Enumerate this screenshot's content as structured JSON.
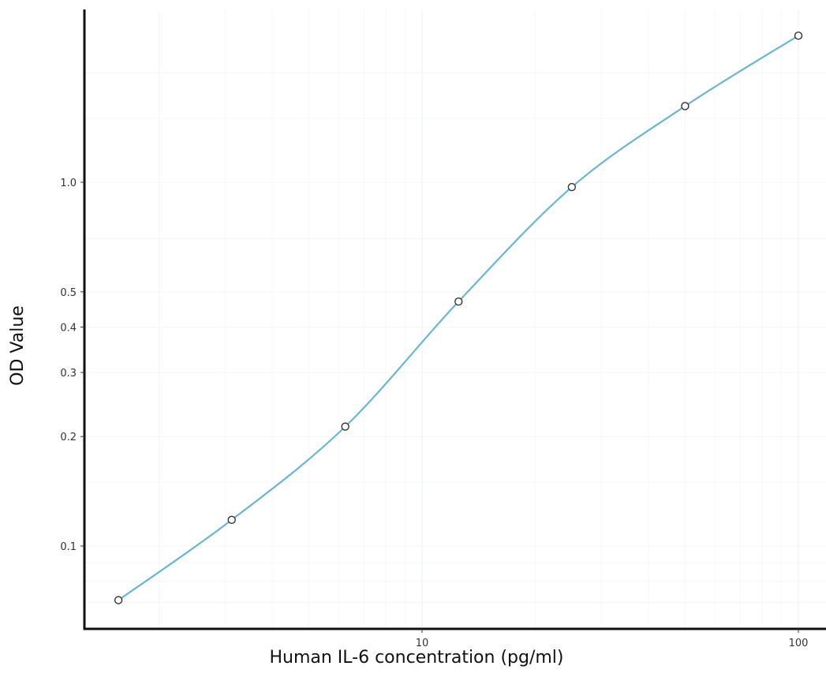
{
  "chart_data": {
    "type": "scatter",
    "title": "",
    "xlabel": "Human IL-6 concentration (pg/ml)",
    "ylabel": "OD Value",
    "x_scale": "log",
    "y_scale": "log",
    "xlim": [
      1.0,
      100
    ],
    "ylim": [
      0.05,
      2.2
    ],
    "x_ticks": [
      {
        "value": 10,
        "label": "10"
      },
      {
        "value": 100,
        "label": "100"
      }
    ],
    "y_ticks": [
      {
        "value": 0.1,
        "label": "0.1"
      },
      {
        "value": 0.2,
        "label": "0.2"
      },
      {
        "value": 0.3,
        "label": "0.3"
      },
      {
        "value": 0.4,
        "label": "0.4"
      },
      {
        "value": 0.5,
        "label": "0.5"
      },
      {
        "value": 1.0,
        "label": "1.0"
      }
    ],
    "grid": true,
    "series": [
      {
        "points": [
          {
            "x": 1.56,
            "y": 0.071
          },
          {
            "x": 3.12,
            "y": 0.118
          },
          {
            "x": 6.25,
            "y": 0.213
          },
          {
            "x": 12.5,
            "y": 0.47
          },
          {
            "x": 25,
            "y": 0.97
          },
          {
            "x": 50,
            "y": 1.62
          },
          {
            "x": 100,
            "y": 2.53
          }
        ],
        "curve": "smooth fit",
        "curve_color": "#6bb5d3",
        "marker": "open circle",
        "marker_color": "#333333"
      }
    ]
  }
}
